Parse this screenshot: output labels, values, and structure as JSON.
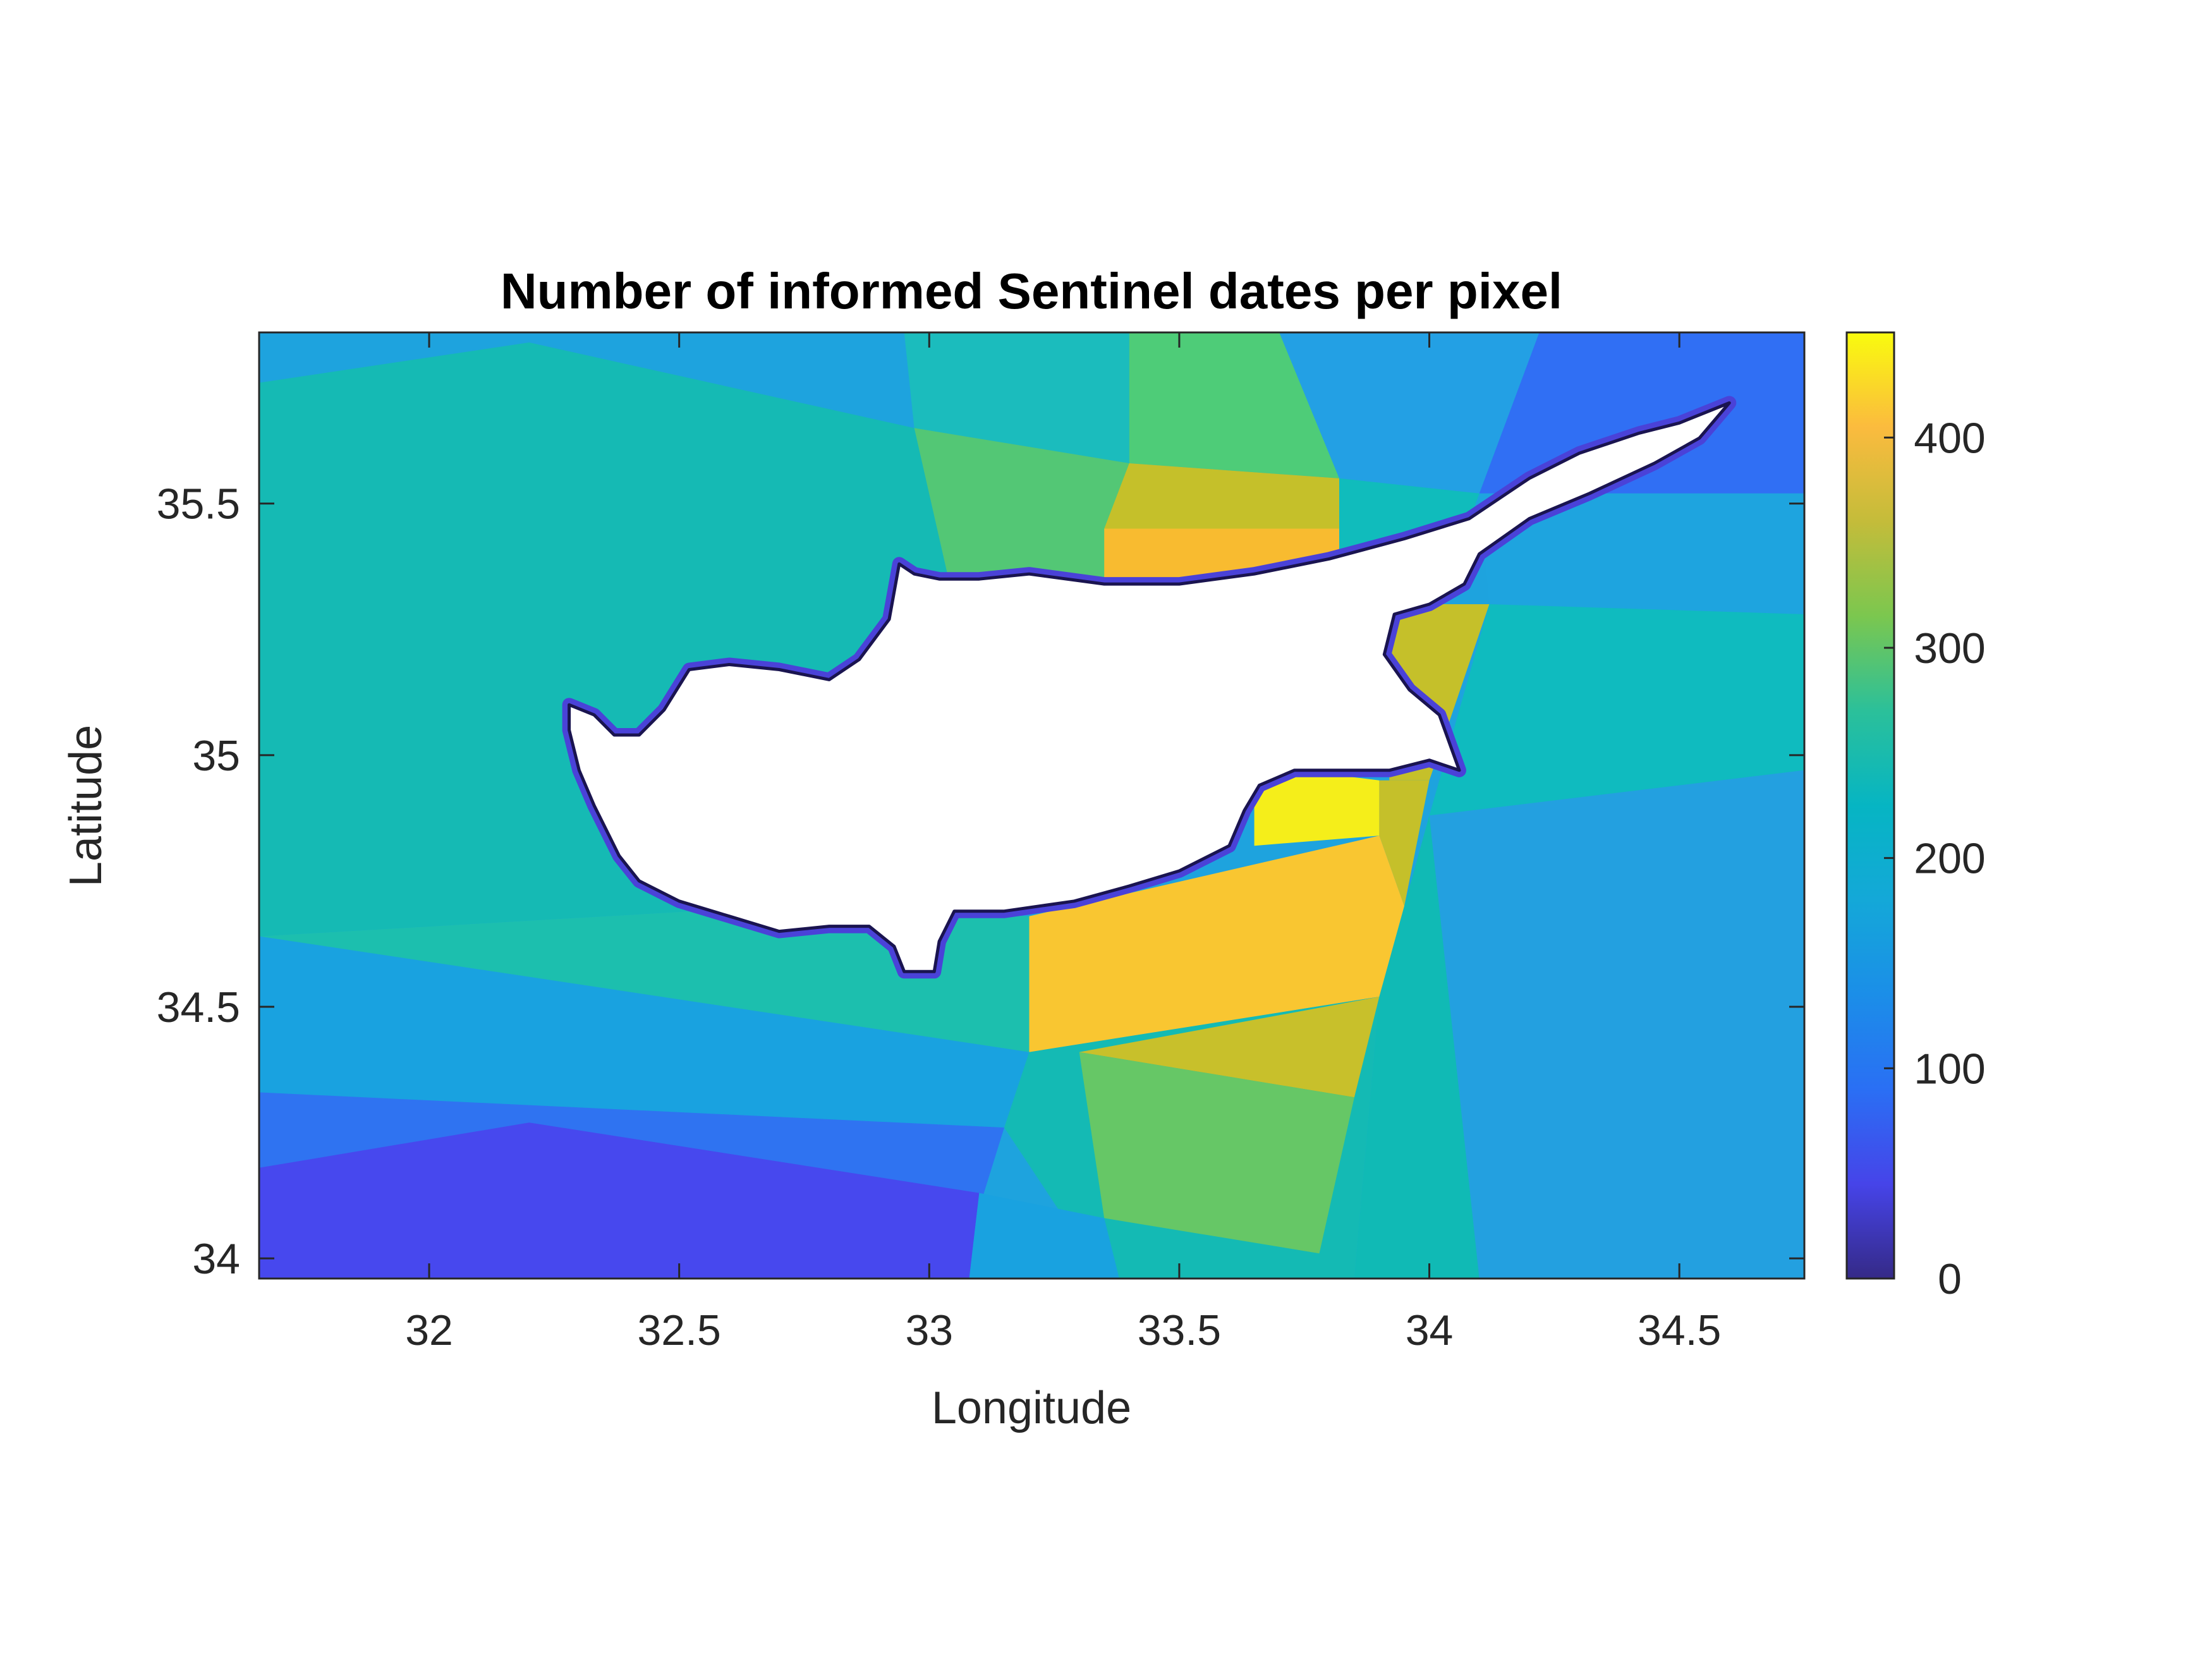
{
  "chart_data": {
    "type": "heatmap",
    "title": "Number of informed Sentinel dates per pixel",
    "xlabel": "Longitude",
    "ylabel": "Latitude",
    "xlim": [
      31.66,
      34.75
    ],
    "ylim": [
      33.96,
      35.84
    ],
    "x_ticks": [
      "32",
      "32.5",
      "33",
      "33.5",
      "34",
      "34.5"
    ],
    "y_ticks": [
      "34",
      "34.5",
      "35",
      "35.5"
    ],
    "colorbar": {
      "range": [
        0,
        450
      ],
      "ticks": [
        "0",
        "100",
        "200",
        "300",
        "400"
      ],
      "colormap": "parula"
    },
    "grid": false,
    "land_mask": "Cyprus (no data, white)",
    "regions": [
      {
        "value": 170,
        "color": "#1ea3de",
        "polygon": [
          [
            31.66,
            35.84
          ],
          [
            32.97,
            35.84
          ],
          [
            32.97,
            35.65
          ],
          [
            32.2,
            35.82
          ],
          [
            31.66,
            35.74
          ]
        ]
      },
      {
        "value": 205,
        "color": "#1bbcbd",
        "polygon": [
          [
            32.95,
            35.84
          ],
          [
            33.4,
            35.84
          ],
          [
            33.4,
            35.58
          ],
          [
            32.97,
            35.65
          ]
        ]
      },
      {
        "value": 260,
        "color": "#4ecc78",
        "polygon": [
          [
            33.4,
            35.84
          ],
          [
            33.7,
            35.84
          ],
          [
            33.82,
            35.55
          ],
          [
            33.4,
            35.58
          ]
        ]
      },
      {
        "value": 165,
        "color": "#23a0e4",
        "polygon": [
          [
            33.7,
            35.84
          ],
          [
            34.22,
            35.84
          ],
          [
            34.1,
            35.52
          ],
          [
            33.82,
            35.55
          ]
        ]
      },
      {
        "value": 120,
        "color": "#306ff4",
        "polygon": [
          [
            34.22,
            35.84
          ],
          [
            34.75,
            35.84
          ],
          [
            34.75,
            35.52
          ],
          [
            34.1,
            35.52
          ]
        ]
      },
      {
        "value": 225,
        "color": "#15bab4",
        "polygon": [
          [
            31.66,
            35.74
          ],
          [
            32.2,
            35.82
          ],
          [
            32.97,
            35.65
          ],
          [
            33.05,
            35.3
          ],
          [
            32.7,
            34.7
          ],
          [
            31.66,
            34.64
          ]
        ]
      },
      {
        "value": 265,
        "color": "#53c775",
        "polygon": [
          [
            32.97,
            35.65
          ],
          [
            33.4,
            35.58
          ],
          [
            33.35,
            35.3
          ],
          [
            33.05,
            35.3
          ]
        ]
      },
      {
        "value": 330,
        "color": "#c5c02a",
        "polygon": [
          [
            33.4,
            35.58
          ],
          [
            33.82,
            35.55
          ],
          [
            33.82,
            35.45
          ],
          [
            33.35,
            35.45
          ]
        ]
      },
      {
        "value": 375,
        "color": "#f8bb30",
        "polygon": [
          [
            33.35,
            35.45
          ],
          [
            33.82,
            35.45
          ],
          [
            33.82,
            35.3
          ],
          [
            33.35,
            35.3
          ]
        ]
      },
      {
        "value": 205,
        "color": "#10bcbc",
        "polygon": [
          [
            33.82,
            35.55
          ],
          [
            34.1,
            35.52
          ],
          [
            34.02,
            35.3
          ],
          [
            33.82,
            35.3
          ]
        ]
      },
      {
        "value": 165,
        "color": "#1ea4df",
        "polygon": [
          [
            34.1,
            35.52
          ],
          [
            34.75,
            35.52
          ],
          [
            34.75,
            35.28
          ],
          [
            34.12,
            35.3
          ]
        ]
      },
      {
        "value": 330,
        "color": "#c5c02a",
        "polygon": [
          [
            33.92,
            35.3
          ],
          [
            34.12,
            35.3
          ],
          [
            34.0,
            34.95
          ],
          [
            33.92,
            34.95
          ]
        ]
      },
      {
        "value": 205,
        "color": "#0fbbbf",
        "polygon": [
          [
            34.12,
            35.3
          ],
          [
            34.75,
            35.28
          ],
          [
            34.75,
            34.97
          ],
          [
            34.0,
            34.88
          ]
        ]
      },
      {
        "value": 440,
        "color": "#f5ee1a",
        "polygon": [
          [
            33.65,
            34.98
          ],
          [
            33.9,
            34.95
          ],
          [
            33.9,
            34.84
          ],
          [
            33.65,
            34.82
          ]
        ]
      },
      {
        "value": 330,
        "color": "#c5c02a",
        "polygon": [
          [
            33.9,
            34.95
          ],
          [
            34.0,
            34.95
          ],
          [
            33.95,
            34.7
          ],
          [
            33.9,
            34.84
          ]
        ]
      },
      {
        "value": 385,
        "color": "#f9c631",
        "polygon": [
          [
            33.2,
            34.68
          ],
          [
            33.9,
            34.84
          ],
          [
            33.95,
            34.7
          ],
          [
            33.9,
            34.52
          ],
          [
            33.2,
            34.41
          ]
        ]
      },
      {
        "value": 165,
        "color": "#23a0e0",
        "polygon": [
          [
            34.0,
            34.88
          ],
          [
            34.75,
            34.97
          ],
          [
            34.75,
            33.96
          ],
          [
            34.1,
            33.96
          ],
          [
            33.95,
            34.52
          ]
        ]
      },
      {
        "value": 205,
        "color": "#10bab5",
        "polygon": [
          [
            33.95,
            34.7
          ],
          [
            34.0,
            34.88
          ],
          [
            34.1,
            33.96
          ],
          [
            33.85,
            33.96
          ],
          [
            33.9,
            34.52
          ]
        ]
      },
      {
        "value": 225,
        "color": "#1cbfae",
        "polygon": [
          [
            31.66,
            34.64
          ],
          [
            32.7,
            34.7
          ],
          [
            33.2,
            34.68
          ],
          [
            33.2,
            34.41
          ],
          [
            31.66,
            34.64
          ]
        ]
      },
      {
        "value": 170,
        "color": "#19a2e0",
        "polygon": [
          [
            31.66,
            34.64
          ],
          [
            33.2,
            34.41
          ],
          [
            33.15,
            34.26
          ],
          [
            31.66,
            34.33
          ]
        ]
      },
      {
        "value": 205,
        "color": "#14bab4",
        "polygon": [
          [
            33.2,
            34.41
          ],
          [
            33.9,
            34.52
          ],
          [
            33.85,
            33.96
          ],
          [
            33.35,
            33.96
          ],
          [
            33.15,
            34.26
          ]
        ]
      },
      {
        "value": 330,
        "color": "#c8c02b",
        "polygon": [
          [
            33.3,
            34.41
          ],
          [
            33.9,
            34.52
          ],
          [
            33.85,
            34.32
          ],
          [
            33.3,
            34.41
          ]
        ]
      },
      {
        "value": 270,
        "color": "#66c766",
        "polygon": [
          [
            33.3,
            34.41
          ],
          [
            33.85,
            34.32
          ],
          [
            33.78,
            34.01
          ],
          [
            33.35,
            34.08
          ]
        ]
      },
      {
        "value": 120,
        "color": "#2f73f1",
        "polygon": [
          [
            31.66,
            34.33
          ],
          [
            33.15,
            34.26
          ],
          [
            33.1,
            34.1
          ],
          [
            31.66,
            34.18
          ]
        ]
      },
      {
        "value": 70,
        "color": "#4748ee",
        "polygon": [
          [
            31.66,
            34.18
          ],
          [
            32.2,
            34.27
          ],
          [
            33.1,
            34.13
          ],
          [
            33.08,
            33.96
          ],
          [
            31.66,
            33.96
          ]
        ]
      },
      {
        "value": 170,
        "color": "#19a2e0",
        "polygon": [
          [
            33.08,
            33.96
          ],
          [
            33.1,
            34.13
          ],
          [
            33.35,
            34.08
          ],
          [
            33.38,
            33.96
          ]
        ]
      }
    ],
    "coast_lonlat": [
      [
        32.28,
        35.1
      ],
      [
        32.33,
        35.08
      ],
      [
        32.37,
        35.04
      ],
      [
        32.42,
        35.04
      ],
      [
        32.47,
        35.09
      ],
      [
        32.52,
        35.17
      ],
      [
        32.6,
        35.18
      ],
      [
        32.7,
        35.17
      ],
      [
        32.8,
        35.15
      ],
      [
        32.86,
        35.19
      ],
      [
        32.92,
        35.27
      ],
      [
        32.94,
        35.38
      ],
      [
        32.97,
        35.36
      ],
      [
        33.02,
        35.35
      ],
      [
        33.1,
        35.35
      ],
      [
        33.2,
        35.36
      ],
      [
        33.35,
        35.34
      ],
      [
        33.5,
        35.34
      ],
      [
        33.65,
        35.36
      ],
      [
        33.8,
        35.39
      ],
      [
        33.95,
        35.43
      ],
      [
        34.08,
        35.47
      ],
      [
        34.2,
        35.55
      ],
      [
        34.3,
        35.6
      ],
      [
        34.42,
        35.64
      ],
      [
        34.5,
        35.66
      ],
      [
        34.6,
        35.7
      ],
      [
        34.54,
        35.63
      ],
      [
        34.45,
        35.58
      ],
      [
        34.32,
        35.52
      ],
      [
        34.2,
        35.47
      ],
      [
        34.1,
        35.4
      ],
      [
        34.07,
        35.34
      ],
      [
        34.0,
        35.3
      ],
      [
        33.93,
        35.28
      ],
      [
        33.91,
        35.2
      ],
      [
        33.96,
        35.13
      ],
      [
        34.02,
        35.08
      ],
      [
        34.06,
        34.97
      ],
      [
        34.0,
        34.99
      ],
      [
        33.92,
        34.97
      ],
      [
        33.84,
        34.97
      ],
      [
        33.73,
        34.97
      ],
      [
        33.66,
        34.94
      ],
      [
        33.63,
        34.89
      ],
      [
        33.6,
        34.82
      ],
      [
        33.5,
        34.77
      ],
      [
        33.4,
        34.74
      ],
      [
        33.29,
        34.71
      ],
      [
        33.15,
        34.69
      ],
      [
        33.05,
        34.69
      ],
      [
        33.02,
        34.63
      ],
      [
        33.01,
        34.57
      ],
      [
        32.95,
        34.57
      ],
      [
        32.93,
        34.62
      ],
      [
        32.88,
        34.66
      ],
      [
        32.8,
        34.66
      ],
      [
        32.7,
        34.65
      ],
      [
        32.6,
        34.68
      ],
      [
        32.5,
        34.71
      ],
      [
        32.42,
        34.75
      ],
      [
        32.38,
        34.8
      ],
      [
        32.33,
        34.9
      ],
      [
        32.3,
        34.97
      ],
      [
        32.28,
        35.05
      ]
    ]
  }
}
